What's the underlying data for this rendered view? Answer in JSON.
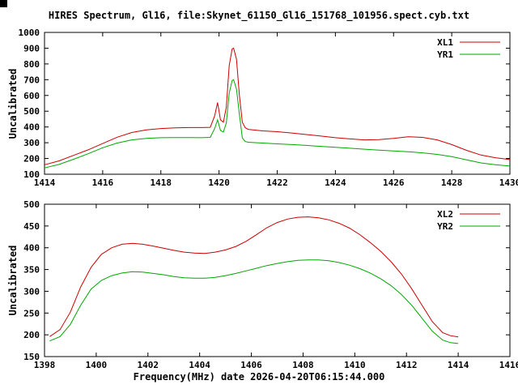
{
  "title": "HIRES Spectrum, Gl16, file:Skynet_61150_Gl16_151768_101956.spect.cyb.txt",
  "xlabel": "Frequency(MHz) date 2026-04-20T06:15:44.000",
  "colors": {
    "red_series": "#cc0000",
    "green_series": "#00a800",
    "axis": "#000000",
    "background": "#ffffff"
  },
  "chart_data": [
    {
      "type": "line",
      "ylabel": "Uncalibrated",
      "xlim": [
        1414,
        1430
      ],
      "ylim": [
        100,
        1000
      ],
      "xticks": [
        1414,
        1416,
        1418,
        1420,
        1422,
        1424,
        1426,
        1428,
        1430
      ],
      "yticks": [
        100,
        200,
        300,
        400,
        500,
        600,
        700,
        800,
        900,
        1000
      ],
      "grid": false,
      "legend_position": "top-right",
      "series": [
        {
          "name": "XL1",
          "color": "#cc0000",
          "x": [
            1414,
            1414.5,
            1415,
            1415.5,
            1416,
            1416.5,
            1417,
            1417.5,
            1418,
            1418.5,
            1419,
            1419.4,
            1419.7,
            1419.85,
            1419.95,
            1420.05,
            1420.15,
            1420.25,
            1420.35,
            1420.45,
            1420.5,
            1420.6,
            1420.7,
            1420.8,
            1420.9,
            1421,
            1421.5,
            1422,
            1422.5,
            1423,
            1423.5,
            1424,
            1424.5,
            1425,
            1425.5,
            1426,
            1426.5,
            1427,
            1427.5,
            1428,
            1428.5,
            1429,
            1429.5,
            1430
          ],
          "y": [
            160,
            185,
            220,
            255,
            295,
            335,
            365,
            382,
            390,
            394,
            396,
            396,
            398,
            470,
            555,
            445,
            430,
            525,
            790,
            895,
            900,
            830,
            600,
            430,
            395,
            385,
            375,
            370,
            362,
            352,
            342,
            332,
            324,
            318,
            320,
            328,
            338,
            334,
            318,
            288,
            252,
            222,
            205,
            193
          ]
        },
        {
          "name": "YR1",
          "color": "#00a800",
          "x": [
            1414,
            1414.5,
            1415,
            1415.5,
            1416,
            1416.5,
            1417,
            1417.5,
            1418,
            1418.5,
            1419,
            1419.4,
            1419.7,
            1419.85,
            1419.95,
            1420.05,
            1420.15,
            1420.25,
            1420.35,
            1420.45,
            1420.5,
            1420.6,
            1420.7,
            1420.8,
            1420.9,
            1421,
            1421.5,
            1422,
            1422.5,
            1423,
            1423.5,
            1424,
            1424.5,
            1425,
            1425.5,
            1426,
            1426.5,
            1427,
            1427.5,
            1428,
            1428.5,
            1429,
            1429.5,
            1430
          ],
          "y": [
            140,
            162,
            195,
            230,
            268,
            298,
            318,
            328,
            332,
            333,
            333,
            332,
            334,
            390,
            445,
            378,
            368,
            425,
            615,
            695,
            700,
            640,
            480,
            330,
            308,
            303,
            298,
            293,
            288,
            283,
            277,
            271,
            265,
            259,
            253,
            248,
            243,
            236,
            226,
            212,
            192,
            172,
            160,
            152
          ]
        }
      ]
    },
    {
      "type": "line",
      "ylabel": "Uncalibrated",
      "xlim": [
        1398,
        1416
      ],
      "ylim": [
        150,
        500
      ],
      "xticks": [
        1398,
        1400,
        1402,
        1404,
        1406,
        1408,
        1410,
        1412,
        1414,
        1416
      ],
      "yticks": [
        150,
        200,
        250,
        300,
        350,
        400,
        450,
        500
      ],
      "grid": false,
      "legend_position": "top-right",
      "series": [
        {
          "name": "XL2",
          "color": "#cc0000",
          "x": [
            1398.2,
            1398.6,
            1399,
            1399.4,
            1399.8,
            1400.2,
            1400.6,
            1401,
            1401.4,
            1401.8,
            1402.2,
            1402.6,
            1403,
            1403.4,
            1403.8,
            1404.2,
            1404.6,
            1405,
            1405.4,
            1405.8,
            1406.2,
            1406.6,
            1407,
            1407.4,
            1407.8,
            1408.2,
            1408.6,
            1409,
            1409.4,
            1409.8,
            1410.2,
            1410.6,
            1411,
            1411.4,
            1411.8,
            1412.2,
            1412.6,
            1413,
            1413.4,
            1413.7,
            1414
          ],
          "y": [
            196,
            212,
            252,
            310,
            355,
            385,
            400,
            408,
            410,
            408,
            404,
            399,
            394,
            390,
            388,
            387,
            390,
            395,
            403,
            415,
            430,
            446,
            458,
            466,
            470,
            471,
            469,
            464,
            456,
            445,
            430,
            412,
            392,
            368,
            340,
            306,
            268,
            230,
            205,
            198,
            195
          ]
        },
        {
          "name": "YR2",
          "color": "#00a800",
          "x": [
            1398.2,
            1398.6,
            1399,
            1399.4,
            1399.8,
            1400.2,
            1400.6,
            1401,
            1401.4,
            1401.8,
            1402.2,
            1402.6,
            1403,
            1403.4,
            1403.8,
            1404.2,
            1404.6,
            1405,
            1405.4,
            1405.8,
            1406.2,
            1406.6,
            1407,
            1407.4,
            1407.8,
            1408.2,
            1408.6,
            1409,
            1409.4,
            1409.8,
            1410.2,
            1410.6,
            1411,
            1411.4,
            1411.8,
            1412.2,
            1412.6,
            1413,
            1413.4,
            1413.7,
            1414
          ],
          "y": [
            186,
            196,
            224,
            268,
            305,
            325,
            336,
            342,
            345,
            344,
            341,
            338,
            334,
            331,
            330,
            330,
            332,
            336,
            341,
            347,
            353,
            359,
            364,
            368,
            371,
            372,
            372,
            370,
            366,
            360,
            352,
            342,
            329,
            313,
            293,
            268,
            238,
            208,
            188,
            182,
            180
          ]
        }
      ]
    }
  ]
}
